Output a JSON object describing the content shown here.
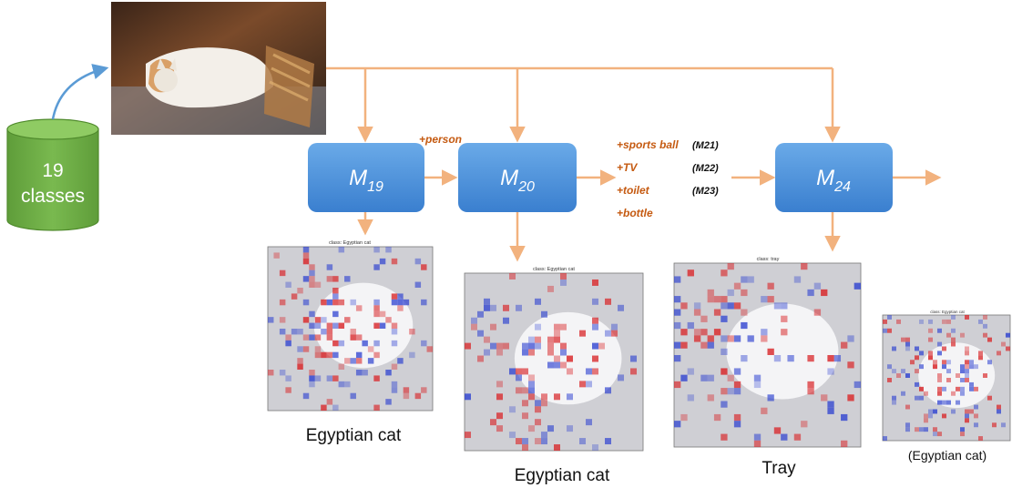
{
  "dataset": {
    "line1": "19",
    "line2": "classes"
  },
  "models": [
    {
      "base": "M",
      "sub": "19"
    },
    {
      "base": "M",
      "sub": "20"
    },
    {
      "base": "M",
      "sub": "24"
    }
  ],
  "added_person": "+person",
  "added_classes": [
    {
      "label": "+sports ball",
      "model": "(M21)"
    },
    {
      "label": "+TV",
      "model": "(M22)"
    },
    {
      "label": "+toilet",
      "model": "(M23)"
    },
    {
      "label": "+bottle",
      "model": ""
    }
  ],
  "heatmaps": [
    {
      "title": "class: Egyptian cat",
      "caption": "Egyptian cat"
    },
    {
      "title": "class: Egyptian cat",
      "caption": "Egyptian cat"
    },
    {
      "title": "class: tray",
      "caption": "Tray"
    },
    {
      "title": "class: Egyptian cat",
      "caption": "(Egyptian cat)"
    }
  ],
  "colors": {
    "arrow_orange": "#f2b27e",
    "arrow_blue": "#5b9bd5",
    "model_blue": "#4a8fd8",
    "db_green": "#70ad47",
    "label_orange": "#c55a11",
    "heat_red": "#d9282b",
    "heat_blue": "#2b3fd0"
  }
}
